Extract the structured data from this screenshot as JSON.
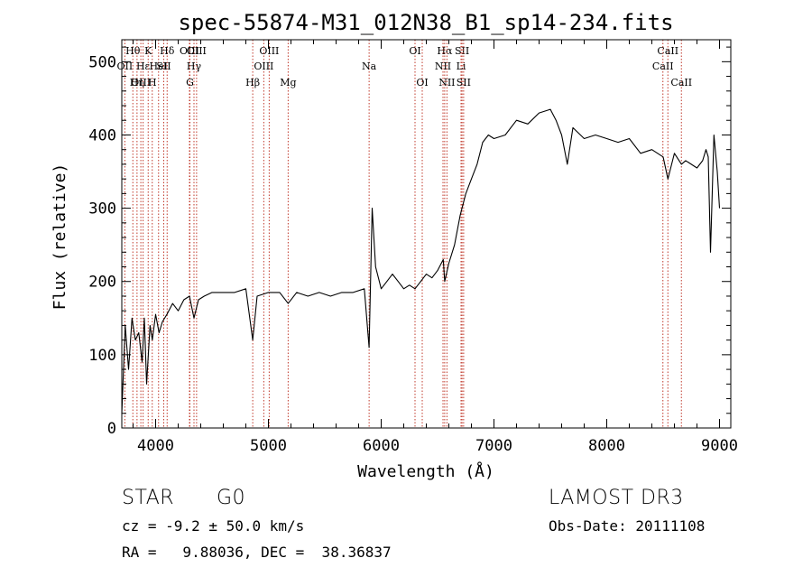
{
  "chart_data": {
    "type": "line",
    "title": "spec-55874-M31_012N38_B1_sp14-234.fits",
    "xlabel": "Wavelength (Å)",
    "ylabel": "Flux (relative)",
    "xlim": [
      3700,
      9100
    ],
    "ylim": [
      0,
      530
    ],
    "xticks": [
      4000,
      5000,
      6000,
      7000,
      8000,
      9000
    ],
    "yticks": [
      0,
      100,
      200,
      300,
      400,
      500
    ],
    "line_color": "#000000",
    "marker_color": "#c0392b",
    "series": [
      {
        "name": "flux",
        "x": [
          3700,
          3730,
          3760,
          3790,
          3820,
          3850,
          3880,
          3900,
          3920,
          3950,
          3970,
          4000,
          4030,
          4060,
          4100,
          4150,
          4200,
          4250,
          4300,
          4340,
          4380,
          4430,
          4500,
          4600,
          4700,
          4800,
          4861,
          4900,
          5000,
          5100,
          5175,
          5250,
          5350,
          5450,
          5550,
          5650,
          5750,
          5850,
          5893,
          5920,
          5950,
          6000,
          6050,
          6100,
          6150,
          6200,
          6250,
          6300,
          6350,
          6400,
          6450,
          6500,
          6550,
          6563,
          6600,
          6650,
          6700,
          6750,
          6800,
          6850,
          6900,
          6950,
          7000,
          7100,
          7200,
          7300,
          7400,
          7500,
          7550,
          7600,
          7650,
          7700,
          7800,
          7900,
          8000,
          8100,
          8200,
          8300,
          8400,
          8500,
          8542,
          8600,
          8662,
          8700,
          8800,
          8850,
          8880,
          8900,
          8920,
          8950,
          8980,
          9000
        ],
        "y": [
          20,
          140,
          80,
          150,
          120,
          130,
          90,
          150,
          60,
          140,
          120,
          155,
          130,
          145,
          155,
          170,
          160,
          175,
          180,
          150,
          175,
          180,
          185,
          185,
          185,
          190,
          120,
          180,
          185,
          185,
          170,
          185,
          180,
          185,
          180,
          185,
          185,
          190,
          110,
          300,
          220,
          190,
          200,
          210,
          200,
          190,
          195,
          190,
          200,
          210,
          205,
          215,
          230,
          200,
          225,
          250,
          290,
          320,
          340,
          360,
          390,
          400,
          395,
          400,
          420,
          415,
          430,
          435,
          420,
          400,
          360,
          410,
          395,
          400,
          395,
          390,
          395,
          375,
          380,
          370,
          340,
          375,
          360,
          365,
          355,
          365,
          380,
          370,
          240,
          400,
          350,
          300
        ]
      }
    ],
    "lines": [
      {
        "label": "Hθ",
        "row": 0,
        "wavelength": 3798
      },
      {
        "label": "OII",
        "row": 1,
        "wavelength": 3727
      },
      {
        "label": "OIII",
        "row": 2,
        "wavelength": 3869
      },
      {
        "label": "Hη",
        "row": 2,
        "wavelength": 3835
      },
      {
        "label": "Hε",
        "row": 1,
        "wavelength": 3889
      },
      {
        "label": "K",
        "row": 0,
        "wavelength": 3934
      },
      {
        "label": "H",
        "row": 2,
        "wavelength": 3970
      },
      {
        "label": "HeI",
        "row": 1,
        "wavelength": 4026
      },
      {
        "label": "SII",
        "row": 1,
        "wavelength": 4072
      },
      {
        "label": "Hδ",
        "row": 0,
        "wavelength": 4102
      },
      {
        "label": "OIII",
        "row": 0,
        "wavelength": 4300
      },
      {
        "label": "Hγ",
        "row": 1,
        "wavelength": 4340
      },
      {
        "label": "G",
        "row": 2,
        "wavelength": 4304
      },
      {
        "label": "OIII",
        "row": 0,
        "wavelength": 4363
      },
      {
        "label": "Hβ",
        "row": 2,
        "wavelength": 4861
      },
      {
        "label": "OIII",
        "row": 0,
        "wavelength": 5007
      },
      {
        "label": "OIII",
        "row": 1,
        "wavelength": 4959
      },
      {
        "label": "Mg",
        "row": 2,
        "wavelength": 5175
      },
      {
        "label": "Na",
        "row": 1,
        "wavelength": 5893
      },
      {
        "label": "OI",
        "row": 0,
        "wavelength": 6300
      },
      {
        "label": "OI",
        "row": 2,
        "wavelength": 6364
      },
      {
        "label": "Hα",
        "row": 0,
        "wavelength": 6563
      },
      {
        "label": "NII",
        "row": 1,
        "wavelength": 6548
      },
      {
        "label": "NII",
        "row": 2,
        "wavelength": 6583
      },
      {
        "label": "SII",
        "row": 0,
        "wavelength": 6717
      },
      {
        "label": "Li",
        "row": 1,
        "wavelength": 6708
      },
      {
        "label": "SII",
        "row": 2,
        "wavelength": 6731
      },
      {
        "label": "CaII",
        "row": 0,
        "wavelength": 8542
      },
      {
        "label": "CaII",
        "row": 1,
        "wavelength": 8498
      },
      {
        "label": "CaII",
        "row": 2,
        "wavelength": 8662
      }
    ]
  },
  "footer": {
    "object_class": "STAR",
    "subclass": "G0",
    "survey": "LAMOST DR3",
    "cz": "cz = -9.2 ± 50.0 km/s",
    "obs_date": "Obs-Date: 20111108",
    "coords": "RA =   9.88036, DEC =  38.36837"
  }
}
